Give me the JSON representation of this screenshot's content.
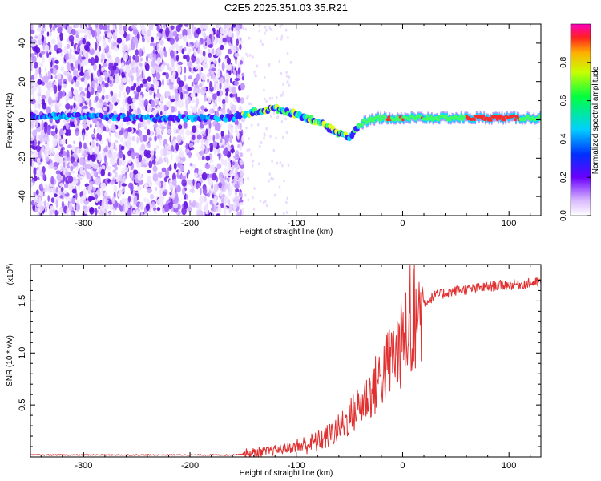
{
  "title": "C2E5.2025.351.03.35.R21",
  "chart_data": [
    {
      "type": "heatmap",
      "name": "spectrogram",
      "xlabel": "Height of straight line (km)",
      "ylabel": "Frequency (Hz)",
      "xlim": [
        -350,
        130
      ],
      "ylim": [
        -50,
        50
      ],
      "xticks": [
        -300,
        -200,
        -100,
        0,
        100
      ],
      "xtick_labels": [
        "-300",
        "-200",
        "-100",
        "0",
        "100"
      ],
      "yticks": [
        -40,
        -20,
        0,
        20,
        40
      ],
      "ytick_labels": [
        "-40",
        "-20",
        "0",
        "20",
        "40"
      ],
      "noise_region_x": [
        -350,
        -150
      ],
      "signal_trace": {
        "x": [
          -350,
          -300,
          -250,
          -200,
          -160,
          -140,
          -120,
          -100,
          -80,
          -70,
          -60,
          -50,
          -45,
          -40,
          -30,
          -20,
          -10,
          0,
          10,
          30,
          60,
          90,
          130
        ],
        "freq_hz": [
          2,
          2,
          1,
          1,
          1,
          4,
          6,
          3,
          -1,
          -4,
          -7,
          -9,
          -6,
          -2,
          0,
          1,
          1,
          1,
          1,
          1,
          1,
          1,
          1
        ]
      },
      "colorbar": {
        "label": "Normalized spectral amplitude",
        "range": [
          0,
          1
        ],
        "ticks": [
          0.0,
          0.2,
          0.4,
          0.6,
          0.8
        ],
        "tick_labels": [
          "0.0",
          "0.2",
          "0.4",
          "0.6",
          "0.8"
        ]
      }
    },
    {
      "type": "line",
      "name": "snr",
      "xlabel": "Height of straight line (km)",
      "ylabel": "SNR (10 * v/v)",
      "multiplier_label": "(x10",
      "multiplier_exp": "4",
      "xlim": [
        -350,
        130
      ],
      "ylim": [
        0,
        1.85
      ],
      "xticks": [
        -300,
        -200,
        -100,
        0,
        100
      ],
      "xtick_labels": [
        "-300",
        "-200",
        "-100",
        "0",
        "100"
      ],
      "yticks": [
        0.5,
        1.0,
        1.5
      ],
      "ytick_labels": [
        "0.5",
        "1.0",
        "1.5"
      ],
      "series": [
        {
          "name": "SNR",
          "color": "#e03030",
          "x": [
            -350,
            -300,
            -250,
            -200,
            -160,
            -150,
            -130,
            -110,
            -100,
            -90,
            -80,
            -70,
            -60,
            -50,
            -40,
            -30,
            -20,
            -10,
            0,
            10,
            20,
            30,
            50,
            70,
            90,
            110,
            130
          ],
          "y": [
            0.02,
            0.02,
            0.02,
            0.02,
            0.02,
            0.03,
            0.05,
            0.08,
            0.1,
            0.12,
            0.15,
            0.2,
            0.27,
            0.38,
            0.5,
            0.62,
            0.78,
            0.95,
            1.1,
            1.3,
            1.48,
            1.55,
            1.6,
            1.62,
            1.65,
            1.66,
            1.68
          ]
        }
      ]
    }
  ]
}
